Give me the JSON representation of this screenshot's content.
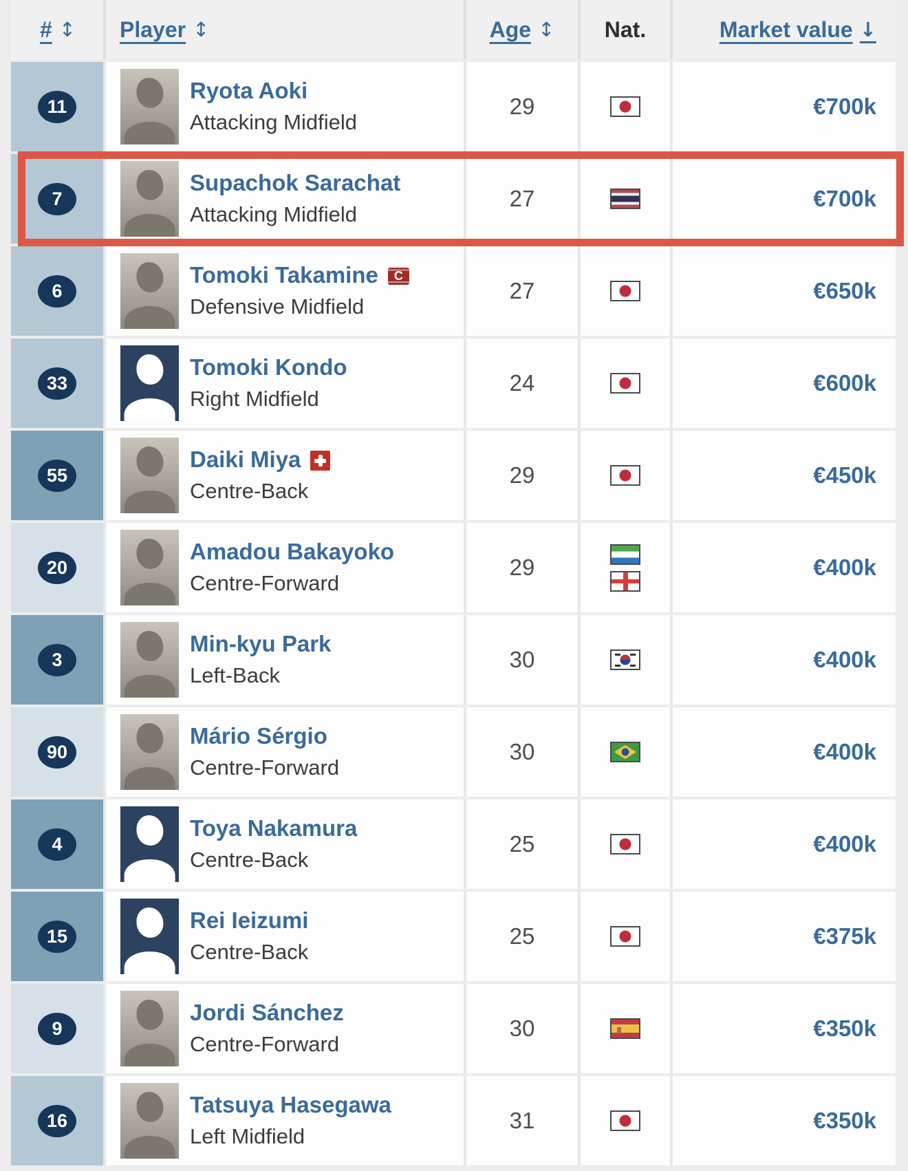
{
  "table": {
    "columns": [
      {
        "label": "#",
        "sort_icon": "↕"
      },
      {
        "label": "Player",
        "sort_icon": "↕"
      },
      {
        "label": "Age",
        "sort_icon": "↕"
      },
      {
        "label": "Nat.",
        "sort_icon": ""
      },
      {
        "label": "Market value",
        "sort_icon": "↓"
      }
    ],
    "rows": [
      {
        "number": "11",
        "name": "Ryota Aoki",
        "position": "Attacking Midfield",
        "age": "29",
        "market_value": "€700k",
        "position_group": "midfield",
        "photo": "photo",
        "nationalities": [
          {
            "name": "Japan",
            "code": "jp"
          }
        ],
        "badge": null,
        "highlighted": false
      },
      {
        "number": "7",
        "name": "Supachok Sarachat",
        "position": "Attacking Midfield",
        "age": "27",
        "market_value": "€700k",
        "position_group": "midfield",
        "photo": "photo",
        "nationalities": [
          {
            "name": "Thailand",
            "code": "th"
          }
        ],
        "badge": null,
        "highlighted": true
      },
      {
        "number": "6",
        "name": "Tomoki Takamine",
        "position": "Defensive Midfield",
        "age": "27",
        "market_value": "€650k",
        "position_group": "midfield",
        "photo": "photo",
        "nationalities": [
          {
            "name": "Japan",
            "code": "jp"
          }
        ],
        "badge": {
          "type": "captain",
          "label": "C"
        },
        "highlighted": false
      },
      {
        "number": "33",
        "name": "Tomoki Kondo",
        "position": "Right Midfield",
        "age": "24",
        "market_value": "€600k",
        "position_group": "midfield",
        "photo": "silhouette",
        "nationalities": [
          {
            "name": "Japan",
            "code": "jp"
          }
        ],
        "badge": null,
        "highlighted": false
      },
      {
        "number": "55",
        "name": "Daiki Miya",
        "position": "Centre-Back",
        "age": "29",
        "market_value": "€450k",
        "position_group": "defence",
        "photo": "photo",
        "nationalities": [
          {
            "name": "Japan",
            "code": "jp"
          }
        ],
        "badge": {
          "type": "injury",
          "label": ""
        },
        "highlighted": false
      },
      {
        "number": "20",
        "name": "Amadou Bakayoko",
        "position": "Centre-Forward",
        "age": "29",
        "market_value": "€400k",
        "position_group": "attack",
        "photo": "photo",
        "nationalities": [
          {
            "name": "Sierra Leone",
            "code": "sl"
          },
          {
            "name": "England",
            "code": "en"
          }
        ],
        "badge": null,
        "highlighted": false
      },
      {
        "number": "3",
        "name": "Min-kyu Park",
        "position": "Left-Back",
        "age": "30",
        "market_value": "€400k",
        "position_group": "defence",
        "photo": "photo",
        "nationalities": [
          {
            "name": "South Korea",
            "code": "kr"
          }
        ],
        "badge": null,
        "highlighted": false
      },
      {
        "number": "90",
        "name": "Mário Sérgio",
        "position": "Centre-Forward",
        "age": "30",
        "market_value": "€400k",
        "position_group": "attack",
        "photo": "photo",
        "nationalities": [
          {
            "name": "Brazil",
            "code": "br"
          }
        ],
        "badge": null,
        "highlighted": false
      },
      {
        "number": "4",
        "name": "Toya Nakamura",
        "position": "Centre-Back",
        "age": "25",
        "market_value": "€400k",
        "position_group": "defence",
        "photo": "silhouette",
        "nationalities": [
          {
            "name": "Japan",
            "code": "jp"
          }
        ],
        "badge": null,
        "highlighted": false
      },
      {
        "number": "15",
        "name": "Rei Ieizumi",
        "position": "Centre-Back",
        "age": "25",
        "market_value": "€375k",
        "position_group": "defence",
        "photo": "silhouette",
        "nationalities": [
          {
            "name": "Japan",
            "code": "jp"
          }
        ],
        "badge": null,
        "highlighted": false
      },
      {
        "number": "9",
        "name": "Jordi Sánchez",
        "position": "Centre-Forward",
        "age": "30",
        "market_value": "€350k",
        "position_group": "attack",
        "photo": "photo",
        "nationalities": [
          {
            "name": "Spain",
            "code": "es"
          }
        ],
        "badge": null,
        "highlighted": false
      },
      {
        "number": "16",
        "name": "Tatsuya Hasegawa",
        "position": "Left Midfield",
        "age": "31",
        "market_value": "€350k",
        "position_group": "midfield",
        "photo": "photo",
        "nationalities": [
          {
            "name": "Japan",
            "code": "jp"
          }
        ],
        "badge": null,
        "highlighted": false
      }
    ]
  },
  "colors": {
    "link_blue": "#3a6b99",
    "highlight_border": "#dc5745",
    "number_badge": "#16365a",
    "number_cell_midfield": "#b4c7d4",
    "number_cell_defence": "#7fa0b5",
    "number_cell_attack": "#d6e0e8"
  }
}
